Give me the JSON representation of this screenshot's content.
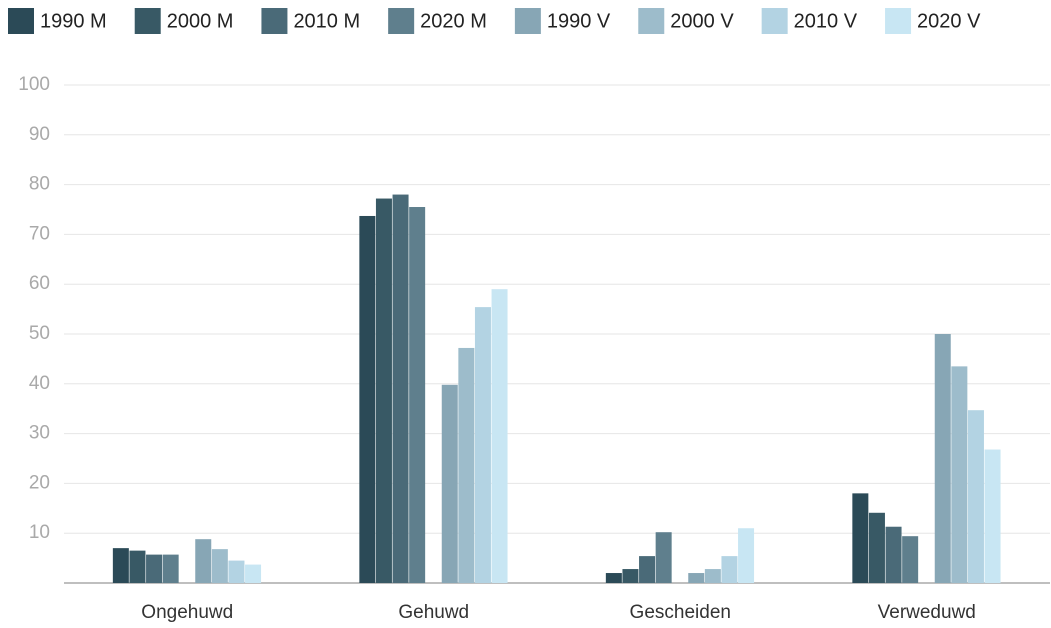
{
  "chart_data": {
    "type": "bar",
    "categories": [
      "Ongehuwd",
      "Gehuwd",
      "Gescheiden",
      "Verweduwd"
    ],
    "series": [
      {
        "name": "1990 M",
        "color": "#2b4a57",
        "values": [
          7.0,
          73.7,
          2.0,
          18.0
        ]
      },
      {
        "name": "2000 M",
        "color": "#385965",
        "values": [
          6.5,
          77.2,
          2.8,
          14.1
        ]
      },
      {
        "name": "2010 M",
        "color": "#4a6a78",
        "values": [
          5.7,
          78.0,
          5.4,
          11.3
        ]
      },
      {
        "name": "2020 M",
        "color": "#5f7f8d",
        "values": [
          5.7,
          75.5,
          10.2,
          9.4
        ]
      },
      {
        "name": "1990 V",
        "color": "#87a6b5",
        "values": [
          8.8,
          39.8,
          2.0,
          50.0
        ]
      },
      {
        "name": "2000 V",
        "color": "#9dbccb",
        "values": [
          6.8,
          47.2,
          2.8,
          43.5
        ]
      },
      {
        "name": "2010 V",
        "color": "#b3d3e3",
        "values": [
          4.5,
          55.4,
          5.4,
          34.7
        ]
      },
      {
        "name": "2020 V",
        "color": "#c8e6f3",
        "values": [
          3.7,
          59.0,
          11.0,
          26.8
        ]
      }
    ],
    "ylim": [
      0,
      100
    ],
    "yticks": [
      10,
      20,
      30,
      40,
      50,
      60,
      70,
      80,
      90,
      100
    ],
    "grid": true,
    "legend": "top"
  }
}
